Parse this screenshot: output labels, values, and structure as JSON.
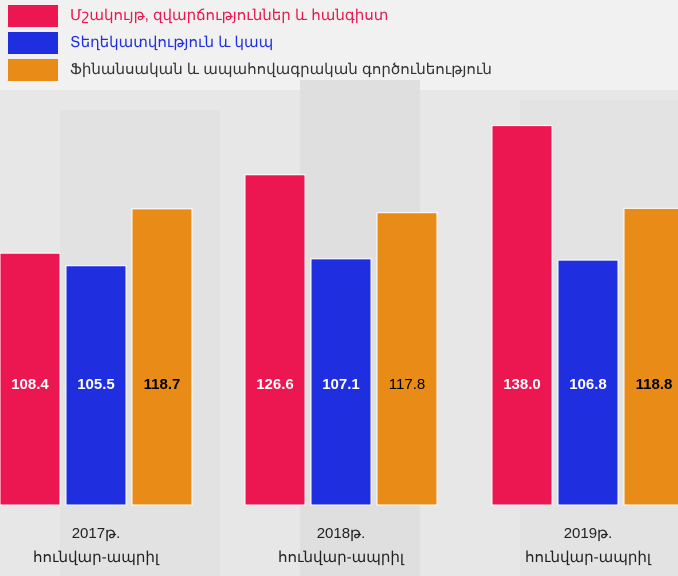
{
  "chart_data": {
    "type": "bar",
    "categories": [
      [
        "2017թ.",
        "հունվար-ապրիլ"
      ],
      [
        "2018թ.",
        "հունվար-ապրիլ"
      ],
      [
        "2019թ.",
        "հունվար-ապրիլ"
      ]
    ],
    "series": [
      {
        "name": "Մշակույթ, զվարճություններ և հանգիստ",
        "color": "#ec1651",
        "label_color": "#ffffff",
        "values": [
          108.4,
          126.6,
          138.0
        ],
        "value_labels": [
          "108.4",
          "126.6",
          "138.0"
        ],
        "value_label_bold": [
          true,
          true,
          true
        ]
      },
      {
        "name": "Տեղեկատվություն և կապ",
        "color": "#1f2fe0",
        "label_color": "#ffffff",
        "values": [
          105.5,
          107.1,
          106.8
        ],
        "value_labels": [
          "105.5",
          "107.1",
          "106.8"
        ],
        "value_label_bold": [
          true,
          true,
          true
        ]
      },
      {
        "name": "Ֆինանսական և ապահովագրական գործունեություն",
        "color": "#e88c17",
        "label_color": "#000000",
        "values": [
          118.7,
          117.8,
          118.8
        ],
        "value_labels": [
          "118.7",
          "117.8",
          "118.8"
        ],
        "value_label_bold": [
          true,
          false,
          true
        ]
      }
    ],
    "ylim": [
      50,
      140
    ]
  }
}
